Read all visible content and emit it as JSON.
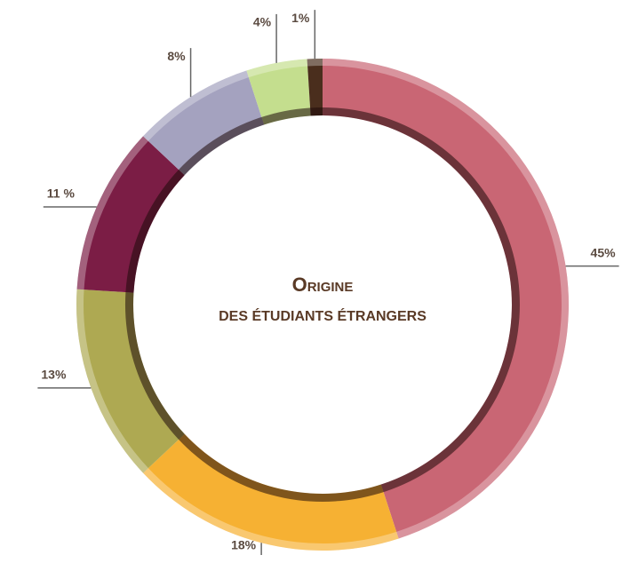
{
  "chart_data": {
    "type": "donut",
    "title": "Origine",
    "subtitle": "des étudiants étrangers",
    "categories": [
      null,
      null,
      null,
      null,
      null,
      null,
      null
    ],
    "values": [
      45,
      18,
      13,
      11,
      8,
      4,
      1
    ],
    "value_labels": [
      "45%",
      "18%",
      "13%",
      "11 %",
      "8%",
      "4%",
      "1%"
    ],
    "colors": [
      "#c96674",
      "#f6b133",
      "#aea952",
      "#7b1d45",
      "#a4a2bf",
      "#c4de8e",
      "#4a2e1d"
    ]
  }
}
